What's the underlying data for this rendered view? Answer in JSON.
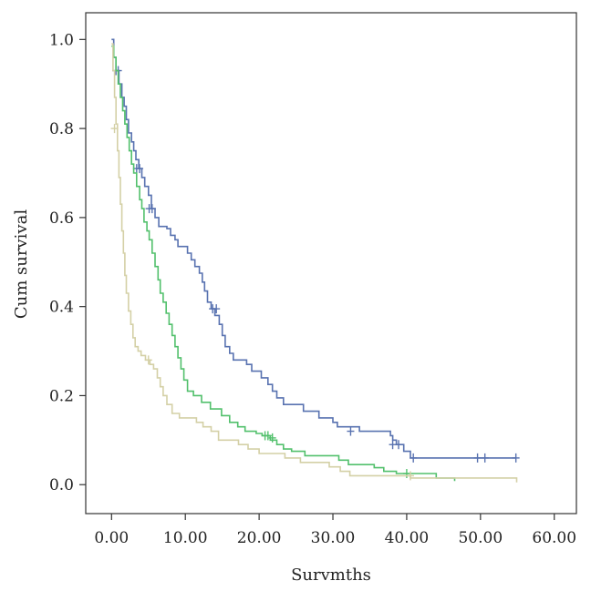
{
  "chart_data": {
    "type": "line",
    "title": "",
    "xlabel": "Survmths",
    "ylabel": "Cum survival",
    "xlim": [
      -3.5,
      63
    ],
    "ylim": [
      -0.065,
      1.06
    ],
    "xticks": [
      0,
      10,
      20,
      30,
      40,
      50,
      60
    ],
    "xtick_labels": [
      "0.00",
      "10.00",
      "20.00",
      "30.00",
      "40.00",
      "50.00",
      "60.00"
    ],
    "yticks": [
      0,
      0.2,
      0.4,
      0.6,
      0.8,
      1.0
    ],
    "ytick_labels": [
      "0.0",
      "0.2",
      "0.4",
      "0.6",
      "0.8",
      "1.0"
    ],
    "grid": false,
    "legend": "none",
    "series": [
      {
        "color": "#5872b0",
        "points": [
          [
            0,
            1.0
          ],
          [
            0.3,
            0.96
          ],
          [
            0.6,
            0.93
          ],
          [
            1.0,
            0.9
          ],
          [
            1.4,
            0.87
          ],
          [
            1.7,
            0.85
          ],
          [
            2.0,
            0.82
          ],
          [
            2.3,
            0.79
          ],
          [
            2.7,
            0.77
          ],
          [
            3.0,
            0.75
          ],
          [
            3.3,
            0.73
          ],
          [
            3.7,
            0.71
          ],
          [
            4.1,
            0.69
          ],
          [
            4.5,
            0.67
          ],
          [
            5.0,
            0.65
          ],
          [
            5.4,
            0.62
          ],
          [
            5.9,
            0.6
          ],
          [
            6.4,
            0.58
          ],
          [
            7.5,
            0.575
          ],
          [
            8.0,
            0.56
          ],
          [
            8.6,
            0.55
          ],
          [
            9.0,
            0.535
          ],
          [
            10.3,
            0.52
          ],
          [
            10.8,
            0.505
          ],
          [
            11.3,
            0.49
          ],
          [
            11.9,
            0.475
          ],
          [
            12.3,
            0.455
          ],
          [
            12.6,
            0.435
          ],
          [
            13.0,
            0.41
          ],
          [
            13.5,
            0.395
          ],
          [
            14.0,
            0.38
          ],
          [
            14.6,
            0.36
          ],
          [
            15.0,
            0.335
          ],
          [
            15.4,
            0.31
          ],
          [
            16.0,
            0.295
          ],
          [
            16.5,
            0.28
          ],
          [
            18.3,
            0.27
          ],
          [
            19.0,
            0.255
          ],
          [
            20.3,
            0.24
          ],
          [
            21.2,
            0.225
          ],
          [
            21.8,
            0.21
          ],
          [
            22.4,
            0.195
          ],
          [
            23.3,
            0.18
          ],
          [
            26.0,
            0.165
          ],
          [
            28.1,
            0.15
          ],
          [
            30.0,
            0.14
          ],
          [
            30.6,
            0.13
          ],
          [
            33.6,
            0.12
          ],
          [
            37.8,
            0.11
          ],
          [
            38.1,
            0.1
          ],
          [
            38.6,
            0.09
          ],
          [
            39.6,
            0.075
          ],
          [
            40.5,
            0.06
          ],
          [
            54.8,
            0.06
          ]
        ],
        "censored": [
          [
            0.6,
            0.93
          ],
          [
            0.9,
            0.93
          ],
          [
            3.4,
            0.71
          ],
          [
            3.8,
            0.71
          ],
          [
            5.1,
            0.62
          ],
          [
            5.5,
            0.62
          ],
          [
            13.7,
            0.395
          ],
          [
            14.2,
            0.395
          ],
          [
            32.4,
            0.12
          ],
          [
            38.1,
            0.09
          ],
          [
            38.9,
            0.09
          ],
          [
            40.9,
            0.06
          ],
          [
            49.6,
            0.06
          ],
          [
            50.6,
            0.06
          ],
          [
            54.8,
            0.06
          ]
        ]
      },
      {
        "color": "#52c06c",
        "points": [
          [
            0,
            0.985
          ],
          [
            0.3,
            0.96
          ],
          [
            0.6,
            0.93
          ],
          [
            0.9,
            0.9
          ],
          [
            1.2,
            0.87
          ],
          [
            1.5,
            0.84
          ],
          [
            1.8,
            0.81
          ],
          [
            2.1,
            0.78
          ],
          [
            2.4,
            0.75
          ],
          [
            2.7,
            0.72
          ],
          [
            3.0,
            0.7
          ],
          [
            3.4,
            0.67
          ],
          [
            3.8,
            0.64
          ],
          [
            4.1,
            0.62
          ],
          [
            4.4,
            0.59
          ],
          [
            4.8,
            0.57
          ],
          [
            5.1,
            0.55
          ],
          [
            5.5,
            0.52
          ],
          [
            5.9,
            0.49
          ],
          [
            6.3,
            0.46
          ],
          [
            6.6,
            0.43
          ],
          [
            7.0,
            0.41
          ],
          [
            7.4,
            0.385
          ],
          [
            7.8,
            0.36
          ],
          [
            8.2,
            0.335
          ],
          [
            8.6,
            0.31
          ],
          [
            9.0,
            0.285
          ],
          [
            9.4,
            0.26
          ],
          [
            9.8,
            0.235
          ],
          [
            10.3,
            0.21
          ],
          [
            11.1,
            0.2
          ],
          [
            12.2,
            0.185
          ],
          [
            13.4,
            0.17
          ],
          [
            14.9,
            0.155
          ],
          [
            16.0,
            0.14
          ],
          [
            17.1,
            0.13
          ],
          [
            18.1,
            0.12
          ],
          [
            19.6,
            0.115
          ],
          [
            20.4,
            0.11
          ],
          [
            21.5,
            0.1
          ],
          [
            22.4,
            0.09
          ],
          [
            23.3,
            0.08
          ],
          [
            24.4,
            0.075
          ],
          [
            26.2,
            0.065
          ],
          [
            30.8,
            0.055
          ],
          [
            32.1,
            0.045
          ],
          [
            35.6,
            0.038
          ],
          [
            36.9,
            0.03
          ],
          [
            38.6,
            0.025
          ],
          [
            40.1,
            0.025
          ],
          [
            44.0,
            0.015
          ],
          [
            46.5,
            0.008
          ]
        ],
        "censored": [
          [
            20.8,
            0.11
          ],
          [
            21.2,
            0.11
          ],
          [
            21.8,
            0.105
          ],
          [
            40.0,
            0.025
          ]
        ]
      },
      {
        "color": "#d4d0a6",
        "points": [
          [
            0,
            0.99
          ],
          [
            0.2,
            0.93
          ],
          [
            0.4,
            0.87
          ],
          [
            0.6,
            0.81
          ],
          [
            0.8,
            0.75
          ],
          [
            1.0,
            0.69
          ],
          [
            1.2,
            0.63
          ],
          [
            1.4,
            0.57
          ],
          [
            1.6,
            0.52
          ],
          [
            1.8,
            0.47
          ],
          [
            2.0,
            0.43
          ],
          [
            2.3,
            0.39
          ],
          [
            2.6,
            0.36
          ],
          [
            2.9,
            0.33
          ],
          [
            3.2,
            0.31
          ],
          [
            3.6,
            0.3
          ],
          [
            4.0,
            0.29
          ],
          [
            4.6,
            0.28
          ],
          [
            5.2,
            0.27
          ],
          [
            5.7,
            0.26
          ],
          [
            6.2,
            0.24
          ],
          [
            6.6,
            0.22
          ],
          [
            7.0,
            0.2
          ],
          [
            7.5,
            0.18
          ],
          [
            8.2,
            0.16
          ],
          [
            9.2,
            0.15
          ],
          [
            11.5,
            0.14
          ],
          [
            12.4,
            0.13
          ],
          [
            13.5,
            0.12
          ],
          [
            14.5,
            0.1
          ],
          [
            17.2,
            0.09
          ],
          [
            18.5,
            0.08
          ],
          [
            20.0,
            0.07
          ],
          [
            23.5,
            0.06
          ],
          [
            25.6,
            0.05
          ],
          [
            29.5,
            0.04
          ],
          [
            31.0,
            0.03
          ],
          [
            32.3,
            0.02
          ],
          [
            40.5,
            0.015
          ],
          [
            54.9,
            0.015
          ],
          [
            54.9,
            0.005
          ]
        ],
        "censored": [
          [
            0.4,
            0.8
          ],
          [
            5.0,
            0.28
          ],
          [
            40.5,
            0.02
          ]
        ]
      }
    ]
  }
}
